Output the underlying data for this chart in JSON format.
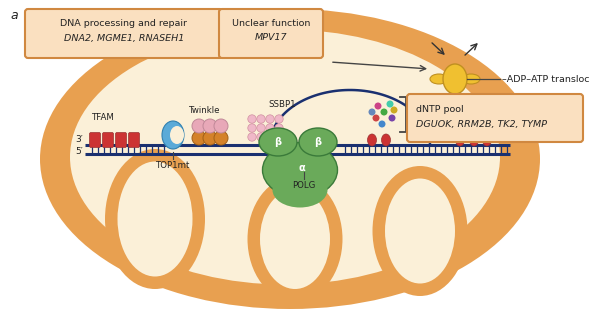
{
  "bg_color": "#ffffff",
  "outer_mito_color": "#E8A050",
  "inner_mito_light": "#FBF0D8",
  "dna_blue": "#1A3070",
  "tfam_red": "#CC3333",
  "twinkle_orange": "#D4822A",
  "twinkle_pink": "#E8A8B8",
  "polg_green": "#6AAA5A",
  "ssbp1_pink": "#F0B8C8",
  "atp_yellow": "#F0C030",
  "top1mt_blue": "#5AAAD8",
  "box_fill": "#FAE0C0",
  "box_edge": "#D08840",
  "text_dark": "#222222",
  "text_gray": "#556677",
  "label_a": "a",
  "box1_title": "DNA processing and repair",
  "box1_italic": "DNA2, MGME1, RNASEH1",
  "box2_title": "Unclear function",
  "box2_italic": "MPV17",
  "box3_label": "–ADP–ATP translocase",
  "box4_title": "dNTP pool",
  "box4_italic": "DGUOK, RRM2B, TK2, TYMP",
  "label_twinkle": "Twinkle",
  "label_ssbp1": "SSBP1",
  "label_tfam": "TFAM",
  "label_3prime": "3′",
  "label_5prime": "5′",
  "label_top1mt": "TOP1mt",
  "label_polg": "POLG",
  "label_beta": "β",
  "label_alpha": "α"
}
